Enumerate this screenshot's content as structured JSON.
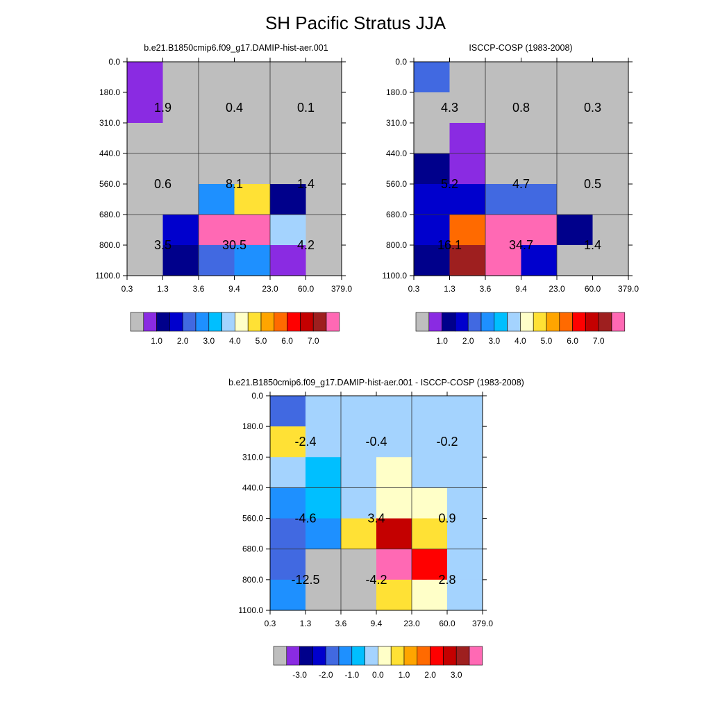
{
  "title": "SH Pacific Stratus JJA",
  "colormap": [
    "#bebebe",
    "#8a2be2",
    "#00008b",
    "#0000cd",
    "#4169e1",
    "#1e90ff",
    "#00bfff",
    "#a4d3fe",
    "#ffffc8",
    "#ffe135",
    "#ffa500",
    "#ff6a00",
    "#ff0000",
    "#c40000",
    "#9e1f1f",
    "#ff69b4"
  ],
  "chart_data": [
    {
      "type": "heatmap",
      "name": "model",
      "title": "b.e21.B1850cmip6.f09_g17.DAMIP-hist-aer.001",
      "x_ticks": [
        "0.3",
        "1.3",
        "3.6",
        "9.4",
        "23.0",
        "60.0",
        "379.0"
      ],
      "y_ticks": [
        "0.0",
        "180.0",
        "310.0",
        "440.0",
        "560.0",
        "680.0",
        "800.0",
        "1100.0"
      ],
      "grid": [
        [
          1,
          0,
          0,
          0,
          0,
          0
        ],
        [
          1,
          0,
          0,
          0,
          0,
          0
        ],
        [
          0,
          0,
          0,
          0,
          0,
          0
        ],
        [
          0,
          0,
          0,
          0,
          0,
          0
        ],
        [
          0,
          0,
          5,
          9,
          2,
          0
        ],
        [
          0,
          3,
          15,
          15,
          7,
          0
        ],
        [
          0,
          2,
          4,
          5,
          1,
          0
        ]
      ],
      "box_values": [
        [
          "1.9",
          "0.4",
          "0.1"
        ],
        [
          "0.6",
          "8.1",
          "1.4"
        ],
        [
          "3.5",
          "30.5",
          "4.2"
        ]
      ],
      "colorbar_labels": [
        "1.0",
        "2.0",
        "3.0",
        "4.0",
        "5.0",
        "6.0",
        "7.0"
      ]
    },
    {
      "type": "heatmap",
      "name": "obs",
      "title": "ISCCP-COSP (1983-2008)",
      "x_ticks": [
        "0.3",
        "1.3",
        "3.6",
        "9.4",
        "23.0",
        "60.0",
        "379.0"
      ],
      "y_ticks": [
        "0.0",
        "180.0",
        "310.0",
        "440.0",
        "560.0",
        "680.0",
        "800.0",
        "1100.0"
      ],
      "grid": [
        [
          4,
          0,
          0,
          0,
          0,
          0
        ],
        [
          0,
          0,
          0,
          0,
          0,
          0
        ],
        [
          0,
          1,
          0,
          0,
          0,
          0
        ],
        [
          2,
          1,
          0,
          0,
          0,
          0
        ],
        [
          3,
          3,
          4,
          4,
          0,
          0
        ],
        [
          3,
          11,
          15,
          15,
          2,
          0
        ],
        [
          2,
          14,
          15,
          3,
          0,
          0
        ]
      ],
      "box_values": [
        [
          "4.3",
          "0.8",
          "0.3"
        ],
        [
          "5.2",
          "4.7",
          "0.5"
        ],
        [
          "16.1",
          "34.7",
          "1.4"
        ]
      ],
      "colorbar_labels": [
        "1.0",
        "2.0",
        "3.0",
        "4.0",
        "5.0",
        "6.0",
        "7.0"
      ]
    },
    {
      "type": "heatmap",
      "name": "diff",
      "title": "b.e21.B1850cmip6.f09_g17.DAMIP-hist-aer.001 - ISCCP-COSP (1983-2008)",
      "x_ticks": [
        "0.3",
        "1.3",
        "3.6",
        "9.4",
        "23.0",
        "60.0",
        "379.0"
      ],
      "y_ticks": [
        "0.0",
        "180.0",
        "310.0",
        "440.0",
        "560.0",
        "680.0",
        "800.0",
        "1100.0"
      ],
      "grid": [
        [
          4,
          7,
          7,
          7,
          7,
          7
        ],
        [
          9,
          7,
          7,
          7,
          7,
          7
        ],
        [
          7,
          6,
          7,
          8,
          7,
          7
        ],
        [
          5,
          6,
          7,
          8,
          8,
          7
        ],
        [
          4,
          5,
          9,
          13,
          9,
          7
        ],
        [
          4,
          0,
          0,
          15,
          12,
          7
        ],
        [
          5,
          0,
          0,
          9,
          8,
          7
        ]
      ],
      "box_values": [
        [
          "-2.4",
          "-0.4",
          "-0.2"
        ],
        [
          "-4.6",
          "3.4",
          "0.9"
        ],
        [
          "-12.5",
          "-4.2",
          "2.8"
        ]
      ],
      "colorbar_labels": [
        "-3.0",
        "-2.0",
        "-1.0",
        "0.0",
        "1.0",
        "2.0",
        "3.0"
      ]
    }
  ]
}
